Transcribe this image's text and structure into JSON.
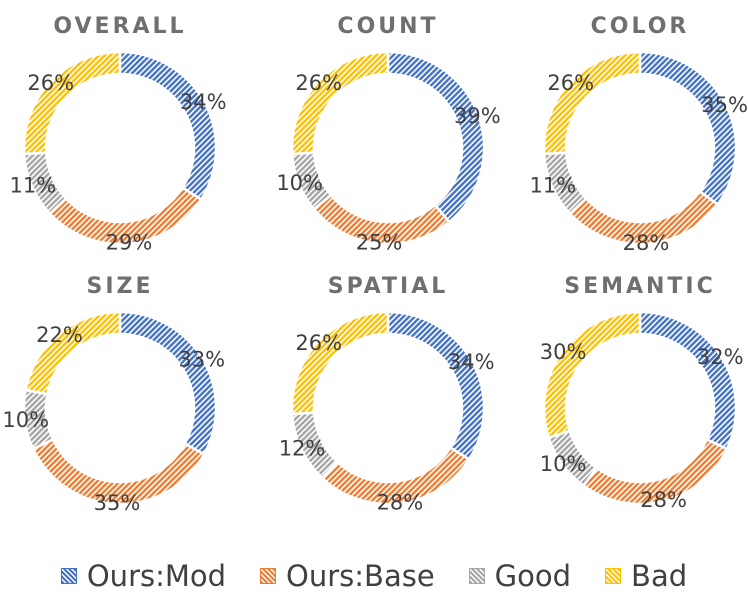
{
  "colors": {
    "mod": "#4472c4",
    "base": "#ed7d31",
    "good": "#a5a5a5",
    "bad": "#ffc000"
  },
  "legend": [
    {
      "key": "mod",
      "label": "Ours:Mod"
    },
    {
      "key": "base",
      "label": "Ours:Base"
    },
    {
      "key": "good",
      "label": "Good"
    },
    {
      "key": "bad",
      "label": "Bad"
    }
  ],
  "chart_data": [
    {
      "type": "pie",
      "title": "OVERALL",
      "labels": [
        "Ours:Mod",
        "Ours:Base",
        "Good",
        "Bad"
      ],
      "values": [
        34,
        29,
        11,
        26
      ],
      "value_labels": [
        "34%",
        "29%",
        "11%",
        "26%"
      ]
    },
    {
      "type": "pie",
      "title": "COUNT",
      "labels": [
        "Ours:Mod",
        "Ours:Base",
        "Good",
        "Bad"
      ],
      "values": [
        39,
        25,
        10,
        26
      ],
      "value_labels": [
        "39%",
        "25%",
        "10%",
        "26%"
      ]
    },
    {
      "type": "pie",
      "title": "COLOR",
      "labels": [
        "Ours:Mod",
        "Ours:Base",
        "Good",
        "Bad"
      ],
      "values": [
        35,
        28,
        11,
        26
      ],
      "value_labels": [
        "35%",
        "28%",
        "11%",
        "26%"
      ]
    },
    {
      "type": "pie",
      "title": "SIZE",
      "labels": [
        "Ours:Mod",
        "Ours:Base",
        "Good",
        "Bad"
      ],
      "values": [
        33,
        35,
        10,
        22
      ],
      "value_labels": [
        "33%",
        "35%",
        "10%",
        "22%"
      ]
    },
    {
      "type": "pie",
      "title": "SPATIAL",
      "labels": [
        "Ours:Mod",
        "Ours:Base",
        "Good",
        "Bad"
      ],
      "values": [
        34,
        28,
        12,
        26
      ],
      "value_labels": [
        "34%",
        "28%",
        "12%",
        "26%"
      ]
    },
    {
      "type": "pie",
      "title": "SEMANTIC",
      "labels": [
        "Ours:Mod",
        "Ours:Base",
        "Good",
        "Bad"
      ],
      "values": [
        32,
        28,
        10,
        30
      ],
      "value_labels": [
        "32%",
        "28%",
        "10%",
        "30%"
      ]
    }
  ]
}
